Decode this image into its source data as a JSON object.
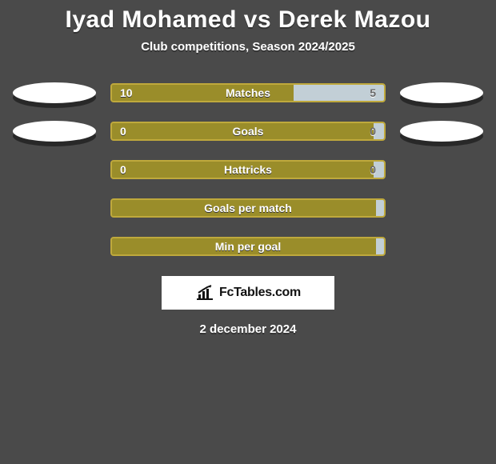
{
  "title_line": "Iyad Mohamed vs Derek Mazou",
  "subtitle": "Club competitions, Season 2024/2025",
  "date_text": "2 december 2024",
  "brand": {
    "text": "FcTables.com",
    "icon_name": "chart-icon"
  },
  "colors": {
    "background": "#4a4a4a",
    "bar_olive": "#9a8d2a",
    "bar_border": "#bfa93c",
    "bar_light": "#c2cfd6",
    "oval_fill": "#ffffff",
    "text_white": "#ffffff",
    "brand_box_bg": "#ffffff"
  },
  "stats": [
    {
      "label": "Matches",
      "left_value": "10",
      "right_value": "5",
      "left_pct": 66.7,
      "right_pct": 33.3,
      "show_left_oval": true,
      "show_right_oval": true
    },
    {
      "label": "Goals",
      "left_value": "0",
      "right_value": "0",
      "left_pct": 96.2,
      "right_pct": 3.8,
      "show_left_oval": true,
      "show_right_oval": true
    },
    {
      "label": "Hattricks",
      "left_value": "0",
      "right_value": "0",
      "left_pct": 96.2,
      "right_pct": 3.8,
      "show_left_oval": false,
      "show_right_oval": false
    },
    {
      "label": "Goals per match",
      "left_value": "",
      "right_value": "",
      "left_pct": 100,
      "right_pct": 0,
      "show_left_oval": false,
      "show_right_oval": false
    },
    {
      "label": "Min per goal",
      "left_value": "",
      "right_value": "",
      "left_pct": 100,
      "right_pct": 0,
      "show_left_oval": false,
      "show_right_oval": false
    }
  ]
}
